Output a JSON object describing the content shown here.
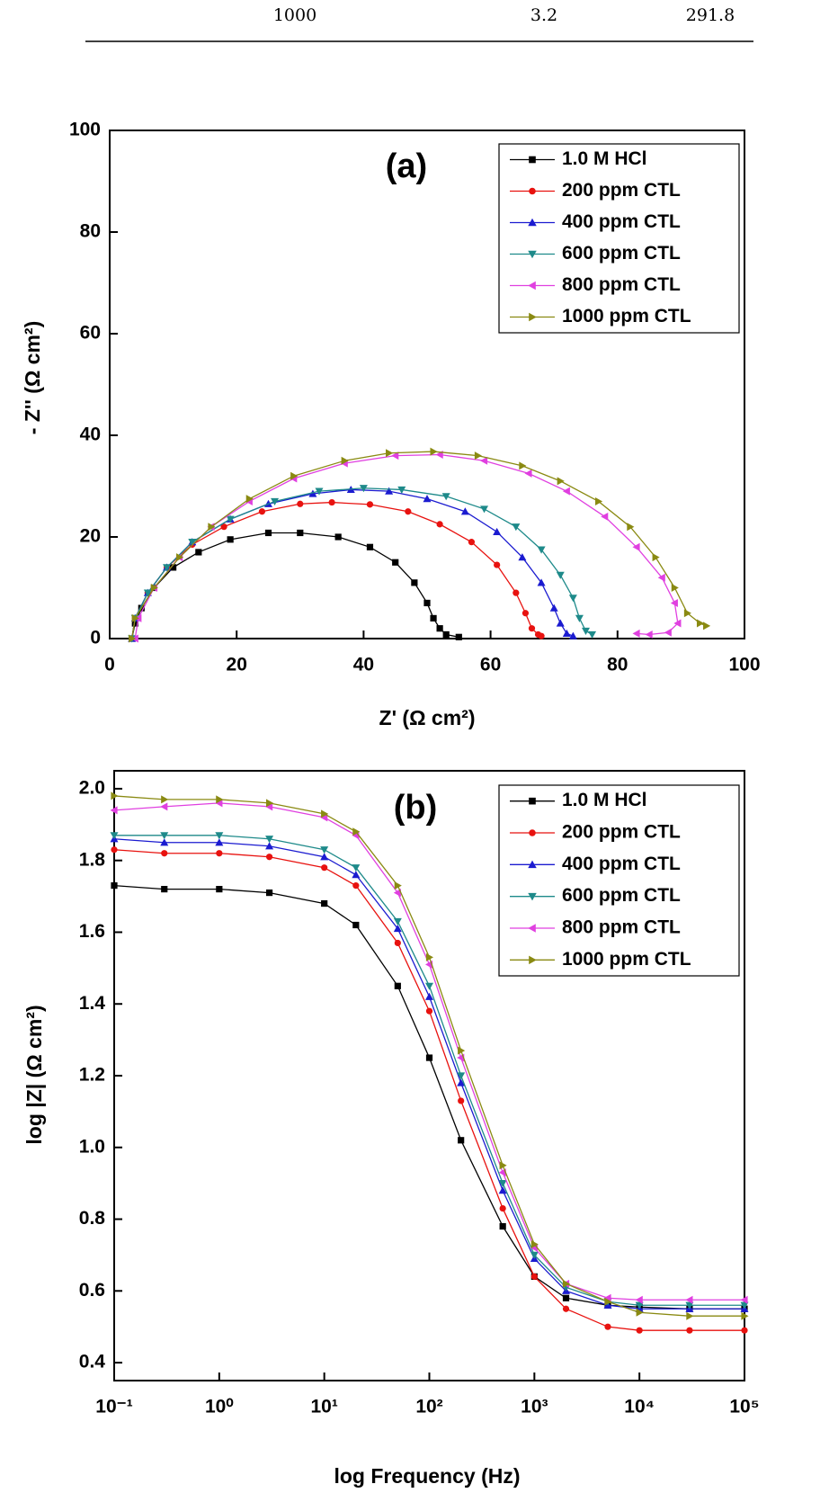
{
  "table": {
    "rows": [
      [
        1000,
        3.2,
        291.8
      ]
    ]
  },
  "chart_data": [
    {
      "type": "line",
      "annotation": "(a)",
      "xlabel": "Z' (Ω cm²)",
      "ylabel": "- Z'' (Ω cm²)",
      "xlim": [
        0,
        100
      ],
      "ylim": [
        0,
        100
      ],
      "xticks": [
        0,
        20,
        40,
        60,
        80,
        100
      ],
      "yticks": [
        0,
        20,
        40,
        60,
        80,
        100
      ],
      "legend": "upper right",
      "series": [
        {
          "name": "1.0 M HCl",
          "color": "#000000",
          "marker": "square",
          "x": [
            3.5,
            4,
            5,
            7,
            10,
            14,
            19,
            25,
            30,
            36,
            41,
            45,
            48,
            50,
            51,
            52,
            53,
            55
          ],
          "values": [
            0,
            3,
            6,
            10,
            14,
            17,
            19.5,
            20.8,
            20.8,
            20,
            18,
            15,
            11,
            7,
            4,
            2,
            0.8,
            0.3
          ]
        },
        {
          "name": "200 ppm CTL",
          "color": "#e8120f",
          "marker": "circle",
          "x": [
            3.5,
            4,
            6,
            9,
            13,
            18,
            24,
            30,
            35,
            41,
            47,
            52,
            57,
            61,
            64,
            65.5,
            66.5,
            67.5,
            68
          ],
          "values": [
            0,
            4,
            9,
            14,
            18.5,
            22,
            25,
            26.5,
            26.8,
            26.4,
            25,
            22.5,
            19,
            14.5,
            9,
            5,
            2,
            0.8,
            0.5
          ]
        },
        {
          "name": "400 ppm CTL",
          "color": "#1b1bd0",
          "marker": "triangle-up",
          "x": [
            3.5,
            4,
            6,
            9,
            13,
            19,
            25,
            32,
            38,
            44,
            50,
            56,
            61,
            65,
            68,
            70,
            71,
            72,
            73
          ],
          "values": [
            0,
            4,
            9,
            14,
            19,
            23.5,
            26.5,
            28.5,
            29.3,
            29,
            27.5,
            25,
            21,
            16,
            11,
            6,
            3,
            1,
            0.5
          ]
        },
        {
          "name": "600 ppm CTL",
          "color": "#1e8a8a",
          "marker": "triangle-down",
          "x": [
            3.5,
            4,
            6,
            9,
            13,
            19,
            26,
            33,
            40,
            46,
            53,
            59,
            64,
            68,
            71,
            73,
            74,
            75,
            76
          ],
          "values": [
            0,
            4,
            9,
            14,
            19,
            23.5,
            27,
            29,
            29.6,
            29.3,
            28,
            25.5,
            22,
            17.5,
            12.5,
            8,
            4,
            1.5,
            0.8
          ]
        },
        {
          "name": "800 ppm CTL",
          "color": "#e040e0",
          "marker": "triangle-left",
          "x": [
            4,
            4.5,
            7,
            11,
            16,
            22,
            29,
            37,
            45,
            52,
            59,
            66,
            72,
            78,
            83,
            87,
            89,
            89.5,
            88,
            85,
            83
          ],
          "values": [
            0,
            4,
            10,
            16,
            22,
            27,
            31.5,
            34.5,
            36,
            36.2,
            35,
            32.5,
            29,
            24,
            18,
            12,
            7,
            3,
            1.2,
            0.8,
            1
          ]
        },
        {
          "name": "1000 ppm CTL",
          "color": "#8a8a12",
          "marker": "triangle-right",
          "x": [
            3.5,
            4,
            7,
            11,
            16,
            22,
            29,
            37,
            44,
            51,
            58,
            65,
            71,
            77,
            82,
            86,
            89,
            91,
            93,
            94
          ],
          "values": [
            0,
            4,
            10,
            16,
            22,
            27.5,
            32,
            35,
            36.5,
            36.8,
            36,
            34,
            31,
            27,
            22,
            16,
            10,
            5,
            3,
            2.5
          ]
        }
      ]
    },
    {
      "type": "line",
      "annotation": "(b)",
      "xlabel": "log Frequency (Hz)",
      "ylabel": "log |Z| (Ω cm²)",
      "log_x": true,
      "xlim": [
        0.1,
        100000
      ],
      "ylim": [
        0.35,
        2.05
      ],
      "xticks": [
        {
          "value": 0.1,
          "label": "10⁻¹"
        },
        {
          "value": 1,
          "label": "10⁰"
        },
        {
          "value": 10,
          "label": "10¹"
        },
        {
          "value": 100,
          "label": "10²"
        },
        {
          "value": 1000,
          "label": "10³"
        },
        {
          "value": 10000,
          "label": "10⁴"
        },
        {
          "value": 100000,
          "label": "10⁵"
        }
      ],
      "yticks": [
        0.4,
        0.6,
        0.8,
        {
          "value": 1,
          "label": "1.0"
        },
        1.2,
        1.4,
        1.6,
        1.8,
        {
          "value": 2,
          "label": "2.0"
        }
      ],
      "legend": "upper right",
      "x": [
        0.1,
        0.3,
        1,
        3,
        10,
        20,
        50,
        100,
        200,
        500,
        1000,
        2000,
        5000,
        10000,
        30000,
        100000
      ],
      "series": [
        {
          "name": "1.0 M HCl",
          "color": "#000000",
          "marker": "square",
          "values": [
            1.73,
            1.72,
            1.72,
            1.71,
            1.68,
            1.62,
            1.45,
            1.25,
            1.02,
            0.78,
            0.64,
            0.58,
            0.56,
            0.555,
            0.55,
            0.55
          ]
        },
        {
          "name": "200 ppm CTL",
          "color": "#e8120f",
          "marker": "circle",
          "values": [
            1.83,
            1.82,
            1.82,
            1.81,
            1.78,
            1.73,
            1.57,
            1.38,
            1.13,
            0.83,
            0.64,
            0.55,
            0.5,
            0.49,
            0.49,
            0.49
          ]
        },
        {
          "name": "400 ppm CTL",
          "color": "#1b1bd0",
          "marker": "triangle-up",
          "values": [
            1.86,
            1.85,
            1.85,
            1.84,
            1.81,
            1.76,
            1.61,
            1.42,
            1.18,
            0.88,
            0.69,
            0.6,
            0.56,
            0.55,
            0.55,
            0.55
          ]
        },
        {
          "name": "600 ppm CTL",
          "color": "#1e8a8a",
          "marker": "triangle-down",
          "values": [
            1.87,
            1.87,
            1.87,
            1.86,
            1.83,
            1.78,
            1.63,
            1.45,
            1.2,
            0.9,
            0.7,
            0.61,
            0.57,
            0.56,
            0.56,
            0.56
          ]
        },
        {
          "name": "800 ppm CTL",
          "color": "#e040e0",
          "marker": "triangle-left",
          "values": [
            1.94,
            1.95,
            1.96,
            1.95,
            1.92,
            1.87,
            1.71,
            1.51,
            1.25,
            0.93,
            0.72,
            0.62,
            0.58,
            0.575,
            0.575,
            0.575
          ]
        },
        {
          "name": "1000 ppm CTL",
          "color": "#8a8a12",
          "marker": "triangle-right",
          "values": [
            1.98,
            1.97,
            1.97,
            1.96,
            1.93,
            1.88,
            1.73,
            1.53,
            1.27,
            0.95,
            0.73,
            0.62,
            0.57,
            0.54,
            0.53,
            0.53
          ]
        }
      ]
    }
  ]
}
